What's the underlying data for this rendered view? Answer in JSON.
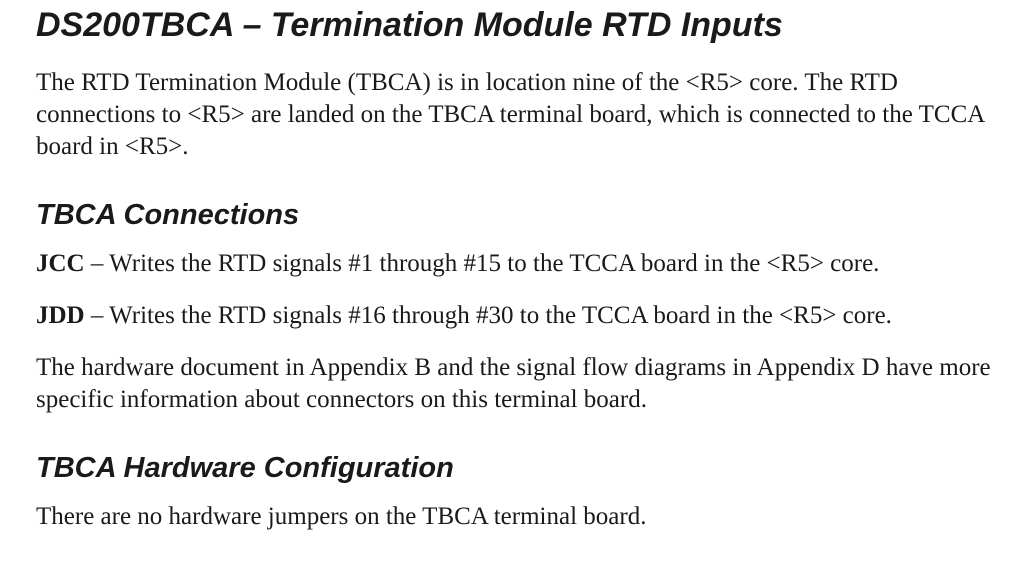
{
  "title": "DS200TBCA – Termination Module RTD Inputs",
  "intro": "The RTD Termination Module (TBCA) is in location nine of the <R5> core. The RTD connections to <R5> are landed on the TBCA terminal board, which is con­nected to the TCCA board in <R5>.",
  "section_connections": {
    "heading": "TBCA Connections",
    "items": [
      {
        "label": "JCC",
        "text": " – Writes the RTD signals #1 through #15 to the TCCA board in the <R5> core."
      },
      {
        "label": "JDD",
        "text": " – Writes the RTD signals #16 through #30 to the TCCA board in the <R5> core."
      }
    ],
    "footer": "The hardware document in Appendix B and the signal flow diagrams in Appendix D have more specific information about connectors on this terminal board."
  },
  "section_hwconfig": {
    "heading": "TBCA Hardware Configuration",
    "text": "There are no hardware jumpers on the TBCA terminal board."
  }
}
